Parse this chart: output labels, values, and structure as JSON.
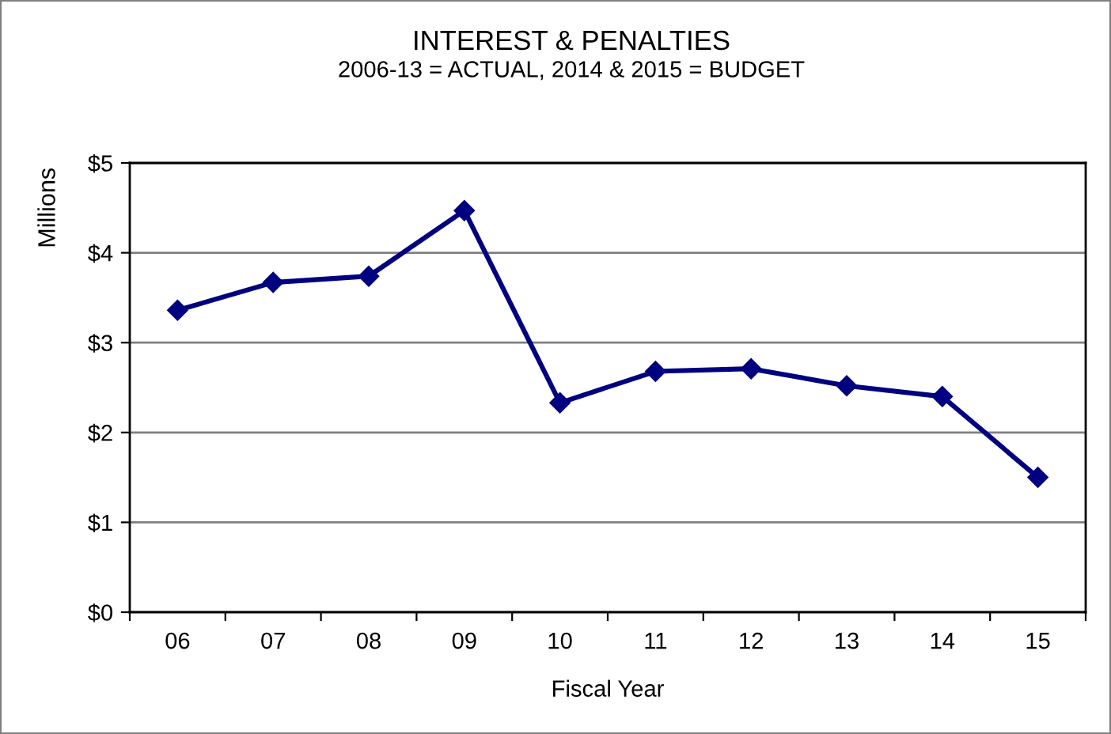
{
  "chart_data": {
    "type": "line",
    "title": "INTEREST & PENALTIES",
    "subtitle": "2006-13 = ACTUAL, 2014 & 2015 = BUDGET",
    "xlabel": "Fiscal Year",
    "ylabel": "Millions",
    "categories": [
      "06",
      "07",
      "08",
      "09",
      "10",
      "11",
      "12",
      "13",
      "14",
      "15"
    ],
    "series": [
      {
        "color": "#000080",
        "values": [
          3.36,
          3.67,
          3.74,
          4.47,
          2.33,
          2.68,
          2.71,
          2.52,
          2.4,
          1.5
        ]
      }
    ],
    "ylim": [
      0,
      5
    ],
    "yticks": [
      {
        "value": 0,
        "label": "$0"
      },
      {
        "value": 1,
        "label": "$1"
      },
      {
        "value": 2,
        "label": "$2"
      },
      {
        "value": 3,
        "label": "$3"
      },
      {
        "value": 4,
        "label": "$4"
      },
      {
        "value": 5,
        "label": "$5"
      }
    ],
    "grid": "y",
    "marker": "diamond",
    "line_style": "solid"
  }
}
